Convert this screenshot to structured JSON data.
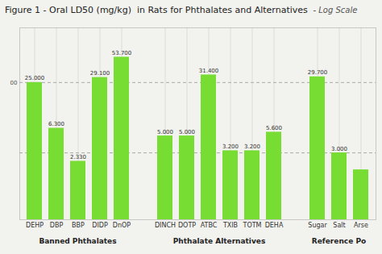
{
  "chart_data": {
    "type": "bar",
    "title": "Figure 1 - Oral LD50 (mg/kg)  in Rats for Phthalates and Alternatives ",
    "subtitle": " - Log Scale",
    "categories": [
      "DEHP",
      "DBP",
      "BBP",
      "DIDP",
      "DnOP",
      "DINCH",
      "DOTP",
      "ATBC",
      "TXIB",
      "TOTM",
      "DEHA",
      "Sugar",
      "Salt",
      "Arse"
    ],
    "values": [
      25000,
      6300,
      2330,
      29100,
      53700,
      5000,
      5000,
      31400,
      3200,
      3200,
      5600,
      29700,
      3000,
      1800
    ],
    "value_labels": [
      "25.000",
      "6.300",
      "2.330",
      "29.100",
      "53.700",
      "5.000",
      "5.000",
      "31.400",
      "3.200",
      "3.200",
      "5.600",
      "29.700",
      "3.000",
      null
    ],
    "data_labels": true,
    "color": "#77dd33",
    "log": "y",
    "ylim": [
      400,
      130000
    ],
    "yticks": [],
    "tick_labels": "x",
    "grid": true,
    "reference_lines": [
      3000,
      25000
    ],
    "annotations": [
      {
        "text": "00",
        "y": 25000
      }
    ],
    "groups": [
      {
        "label": "Banned Phthalates",
        "categories": [
          "DEHP",
          "DBP",
          "BBP",
          "DIDP",
          "DnOP"
        ]
      },
      {
        "label": "Phthalate Alternatives",
        "categories": [
          "DINCH",
          "DOTP",
          "ATBC",
          "TXIB",
          "TOTM",
          "DEHA"
        ]
      },
      {
        "label": "Reference Po",
        "categories": [
          "Sugar",
          "Salt",
          "Arse"
        ]
      }
    ]
  }
}
